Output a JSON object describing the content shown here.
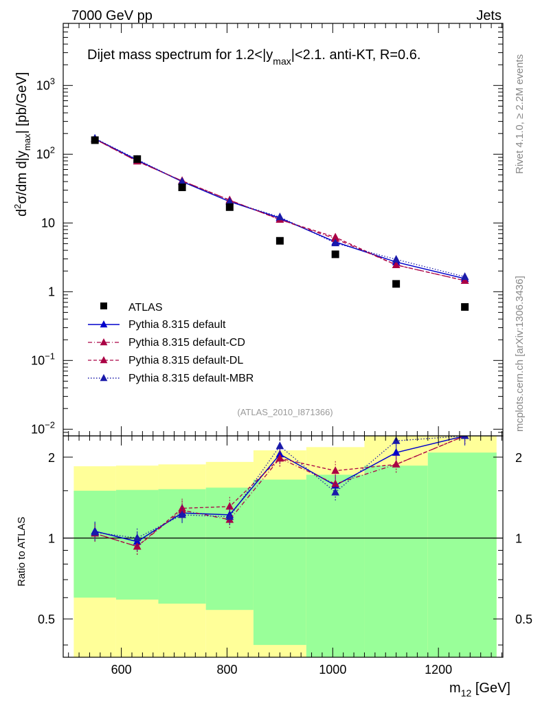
{
  "header": {
    "left": "7000 GeV pp",
    "right": "Jets",
    "side_top": "Rivet 4.1.0, ≥ 2.2M events",
    "side_bottom": "mcplots.cern.ch [arXiv:1306.3436]"
  },
  "chart_data": [
    {
      "type": "scatter",
      "title": {
        "prefix": "Dijet mass spectrum for 1.2<|y",
        "sub": "max",
        "suffix": "|<2.1.  anti-KT, R=0.6."
      },
      "analysis_id": "(ATLAS_2010_I871366)",
      "ylabel": {
        "a": "d",
        "sup": "2",
        "b": "σ/dm d|y",
        "sub": "max",
        "c": "| [pb/GeV]"
      },
      "yscale": "log",
      "ylim": [
        0.008,
        8000
      ],
      "xlim": [
        490,
        1322
      ],
      "ytick_labels": [
        {
          "value": 0.01,
          "base": "10",
          "exp": "−2"
        },
        {
          "value": 0.1,
          "base": "10",
          "exp": "−1"
        },
        {
          "value": 1,
          "base": "1",
          "exp": ""
        },
        {
          "value": 10,
          "base": "10",
          "exp": ""
        },
        {
          "value": 100,
          "base": "10",
          "exp": "2"
        },
        {
          "value": 1000,
          "base": "10",
          "exp": "3"
        }
      ],
      "x": [
        550,
        630,
        715,
        805,
        900,
        1005,
        1120,
        1250
      ],
      "data": {
        "name": "ATLAS",
        "values": [
          160,
          85,
          33,
          17,
          5.5,
          3.5,
          1.3,
          0.6
        ],
        "bins": [
          [
            510,
            590
          ],
          [
            590,
            670
          ],
          [
            670,
            760
          ],
          [
            760,
            850
          ],
          [
            850,
            950
          ],
          [
            950,
            1060
          ],
          [
            1060,
            1180
          ],
          [
            1180,
            1310
          ]
        ]
      },
      "series": [
        {
          "name": "Pythia 8.315 default",
          "color": "#0000cc",
          "dash": "solid",
          "values": [
            168,
            82,
            40,
            20.5,
            11.8,
            5.3,
            2.7,
            1.55
          ]
        },
        {
          "name": "Pythia 8.315 default-CD",
          "color": "#aa0044",
          "dash": "dashdot",
          "values": [
            166,
            79,
            41,
            21.5,
            11.2,
            5.9,
            2.45,
            1.45
          ]
        },
        {
          "name": "Pythia 8.315 default-DL",
          "color": "#aa0044",
          "dash": "dashed",
          "values": [
            166,
            79,
            41,
            21.5,
            11.2,
            6.2,
            2.45,
            1.45
          ]
        },
        {
          "name": "Pythia 8.315 default-MBR",
          "color": "#1a1aaa",
          "dash": "dotted",
          "values": [
            170,
            84,
            40,
            20.5,
            12.2,
            5.1,
            2.95,
            1.65
          ]
        }
      ],
      "legend_position": "lower-left"
    },
    {
      "type": "line",
      "ylabel": "Ratio to ATLAS",
      "xlabel": {
        "main": "m",
        "sub": "12",
        "unit": " [GeV]"
      },
      "yscale": "log",
      "ylim": [
        0.36,
        2.4
      ],
      "xlim": [
        490,
        1322
      ],
      "xticks": [
        600,
        800,
        1000,
        1200
      ],
      "xtick_labels": [
        "600",
        "800",
        "1000",
        "1200"
      ],
      "yticks": [
        0.5,
        1,
        2
      ],
      "ytick_labels": [
        "0.5",
        "1",
        "2"
      ],
      "bands": [
        {
          "x0": 510,
          "x1": 590,
          "green": [
            0.6,
            1.5
          ],
          "yellow": [
            0.36,
            1.85
          ]
        },
        {
          "x0": 590,
          "x1": 670,
          "green": [
            0.59,
            1.51
          ],
          "yellow": [
            0.36,
            1.86
          ]
        },
        {
          "x0": 670,
          "x1": 760,
          "green": [
            0.57,
            1.52
          ],
          "yellow": [
            0.36,
            1.88
          ]
        },
        {
          "x0": 760,
          "x1": 850,
          "green": [
            0.54,
            1.54
          ],
          "yellow": [
            0.36,
            1.92
          ]
        },
        {
          "x0": 850,
          "x1": 950,
          "green": [
            0.4,
            1.65
          ],
          "yellow": [
            0.36,
            2.12
          ]
        },
        {
          "x0": 950,
          "x1": 1060,
          "green": [
            0.36,
            1.72
          ],
          "yellow": [
            0.36,
            2.18
          ]
        },
        {
          "x0": 1060,
          "x1": 1180,
          "green": [
            0.36,
            1.86
          ],
          "yellow": [
            0.36,
            2.4
          ]
        },
        {
          "x0": 1180,
          "x1": 1310,
          "green": [
            0.36,
            2.08
          ],
          "yellow": [
            0.36,
            2.4
          ]
        }
      ],
      "x": [
        550,
        630,
        715,
        805,
        900,
        1005,
        1120,
        1250
      ],
      "series": [
        {
          "name": "Pythia 8.315 default",
          "values": [
            1.06,
            0.97,
            1.24,
            1.22,
            2.05,
            1.57,
            2.08,
            2.4
          ]
        },
        {
          "name": "Pythia 8.315 default-CD",
          "values": [
            1.04,
            0.93,
            1.27,
            1.17,
            1.98,
            1.59,
            1.88,
            2.4
          ]
        },
        {
          "name": "Pythia 8.315 default-DL",
          "values": [
            1.04,
            0.93,
            1.29,
            1.31,
            1.98,
            1.78,
            1.88,
            2.4
          ]
        },
        {
          "name": "Pythia 8.315 default-MBR",
          "values": [
            1.05,
            1.0,
            1.22,
            1.2,
            2.2,
            1.48,
            2.3,
            2.4
          ]
        }
      ]
    }
  ]
}
